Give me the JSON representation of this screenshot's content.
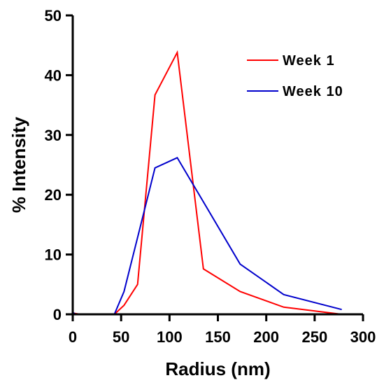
{
  "chart_data": {
    "type": "line",
    "xlabel": "Radius (nm)",
    "ylabel": "% Intensity",
    "xlim": [
      0,
      300
    ],
    "ylim": [
      0,
      50
    ],
    "xticks": [
      "0",
      "50",
      "100",
      "150",
      "200",
      "250",
      "300"
    ],
    "yticks": [
      "0",
      "10",
      "20",
      "30",
      "40",
      "50"
    ],
    "grid": false,
    "legend": "top-right",
    "series": [
      {
        "name": "Week 1",
        "color": "#ff0000",
        "points": [
          {
            "x": 0,
            "y": 0.2
          },
          {
            "x": 8,
            "y": 0
          },
          {
            "x": 43,
            "y": 0
          },
          {
            "x": 53,
            "y": 1.5
          },
          {
            "x": 67,
            "y": 5
          },
          {
            "x": 85,
            "y": 36.7
          },
          {
            "x": 108,
            "y": 43.8
          },
          {
            "x": 135,
            "y": 7.6
          },
          {
            "x": 173,
            "y": 3.8
          },
          {
            "x": 218,
            "y": 1.2
          },
          {
            "x": 278,
            "y": 0
          }
        ]
      },
      {
        "name": "Week 10",
        "color": "#0000cc",
        "points": [
          {
            "x": 0,
            "y": 0.3
          },
          {
            "x": 3,
            "y": 0
          },
          {
            "x": 43,
            "y": 0
          },
          {
            "x": 53,
            "y": 3.8
          },
          {
            "x": 68,
            "y": 13.5
          },
          {
            "x": 85,
            "y": 24.5
          },
          {
            "x": 108,
            "y": 26.2
          },
          {
            "x": 135,
            "y": 18.8
          },
          {
            "x": 173,
            "y": 8.4
          },
          {
            "x": 218,
            "y": 3.3
          },
          {
            "x": 278,
            "y": 0.8
          }
        ]
      }
    ]
  }
}
